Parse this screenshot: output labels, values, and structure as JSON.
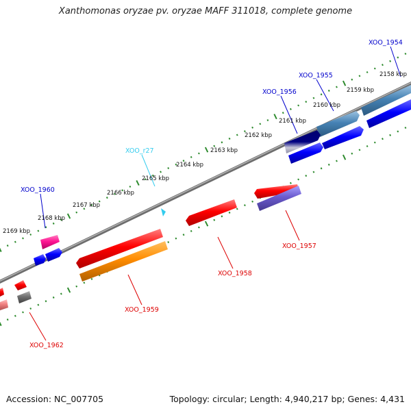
{
  "title": "Xanthomonas oryzae pv. oryzae MAFF 311018, complete genome",
  "footer": {
    "accession": "Accession: NC_007705",
    "summary": "Topology: circular; Length: 4,940,217 bp; Genes: 4,431"
  },
  "colors": {
    "backbone": "#8a8a8a",
    "tick": "#2e8b2e",
    "forward_label": "#0000cc",
    "reverse_label": "#dd0000",
    "rna_label": "#33ccee"
  },
  "kbp_labels": [
    {
      "id": "kbp-2158",
      "text": "2158 kbp"
    },
    {
      "id": "kbp-2159",
      "text": "2159 kbp"
    },
    {
      "id": "kbp-2160",
      "text": "2160 kbp"
    },
    {
      "id": "kbp-2161",
      "text": "2161 kbp"
    },
    {
      "id": "kbp-2162",
      "text": "2162 kbp"
    },
    {
      "id": "kbp-2163",
      "text": "2163 kbp"
    },
    {
      "id": "kbp-2164",
      "text": "2164 kbp"
    },
    {
      "id": "kbp-2165",
      "text": "2165 kbp"
    },
    {
      "id": "kbp-2166",
      "text": "2166 kbp"
    },
    {
      "id": "kbp-2167",
      "text": "2167 kbp"
    },
    {
      "id": "kbp-2168",
      "text": "2168 kbp"
    },
    {
      "id": "kbp-2169",
      "text": "2169 kbp"
    }
  ],
  "gene_labels": [
    {
      "id": "XOO_1954",
      "text": "XOO_1954"
    },
    {
      "id": "XOO_1955",
      "text": "XOO_1955"
    },
    {
      "id": "XOO_1956",
      "text": "XOO_1956"
    },
    {
      "id": "XOO_r27",
      "text": "XOO_r27"
    },
    {
      "id": "XOO_1960",
      "text": "XOO_1960"
    },
    {
      "id": "XOO_1957",
      "text": "XOO_1957"
    },
    {
      "id": "XOO_1958",
      "text": "XOO_1958"
    },
    {
      "id": "XOO_1959",
      "text": "XOO_1959"
    },
    {
      "id": "XOO_1962",
      "text": "XOO_1962"
    }
  ]
}
